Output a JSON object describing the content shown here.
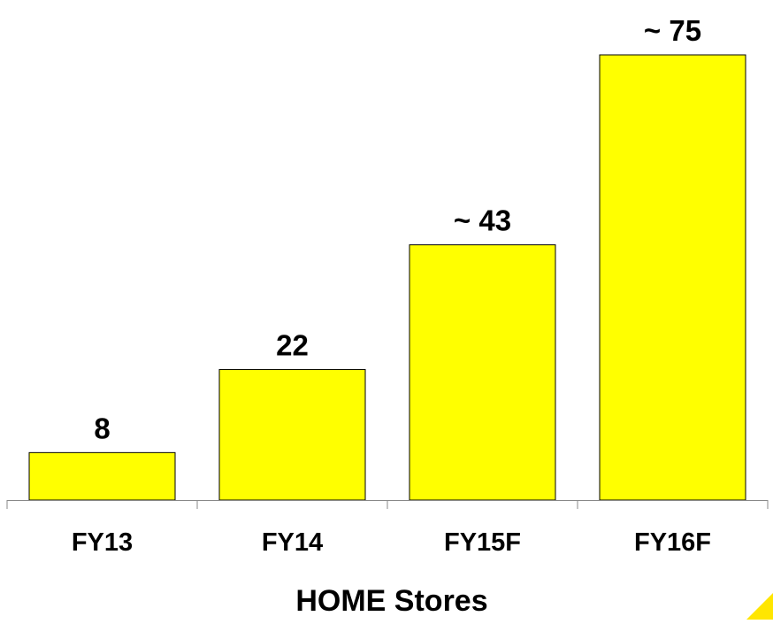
{
  "chart_data": {
    "type": "bar",
    "categories": [
      "FY13",
      "FY14",
      "FY15F",
      "FY16F"
    ],
    "values": [
      8,
      22,
      43,
      75
    ],
    "data_labels": [
      "8",
      "22",
      "~ 43",
      "~ 75"
    ],
    "title": "",
    "xlabel": "HOME Stores",
    "ylabel": "",
    "ylim": [
      0,
      75
    ],
    "grid": false,
    "legend": "none",
    "colors": {
      "bar_fill": "#ffff00",
      "bar_stroke": "#000000",
      "axis": "#888888",
      "accent_mark": "#ffe600"
    }
  }
}
